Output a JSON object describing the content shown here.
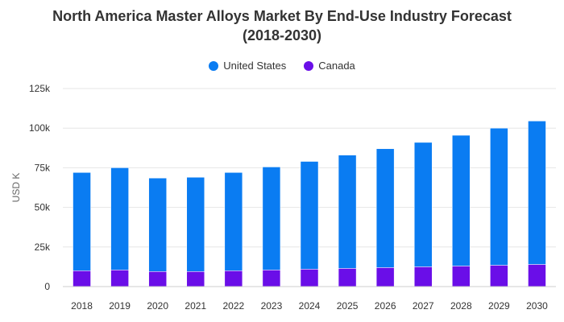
{
  "chart_data": {
    "type": "bar",
    "stacked": true,
    "title_line1": "North America Master Alloys Market By End-Use Industry Forecast",
    "title_line2": "(2018-2030)",
    "ylabel": "USD K",
    "xlabel": "",
    "ylim": [
      0,
      125000
    ],
    "yticks": [
      0,
      25000,
      50000,
      75000,
      100000,
      125000
    ],
    "ytick_labels": [
      "0",
      "25k",
      "50k",
      "75k",
      "100k",
      "125k"
    ],
    "categories": [
      "2018",
      "2019",
      "2020",
      "2021",
      "2022",
      "2023",
      "2024",
      "2025",
      "2026",
      "2027",
      "2028",
      "2029",
      "2030"
    ],
    "series": [
      {
        "name": "United States",
        "color": "#0a7cf2",
        "values": [
          62000,
          64500,
          59000,
          59500,
          62000,
          65000,
          68000,
          71500,
          75000,
          78500,
          82500,
          86500,
          90500
        ]
      },
      {
        "name": "Canada",
        "color": "#6a0ee8",
        "values": [
          10000,
          10500,
          9500,
          9500,
          10000,
          10500,
          11000,
          11500,
          12000,
          12500,
          13000,
          13500,
          14000
        ]
      }
    ],
    "legend_position": "top",
    "grid": true
  }
}
